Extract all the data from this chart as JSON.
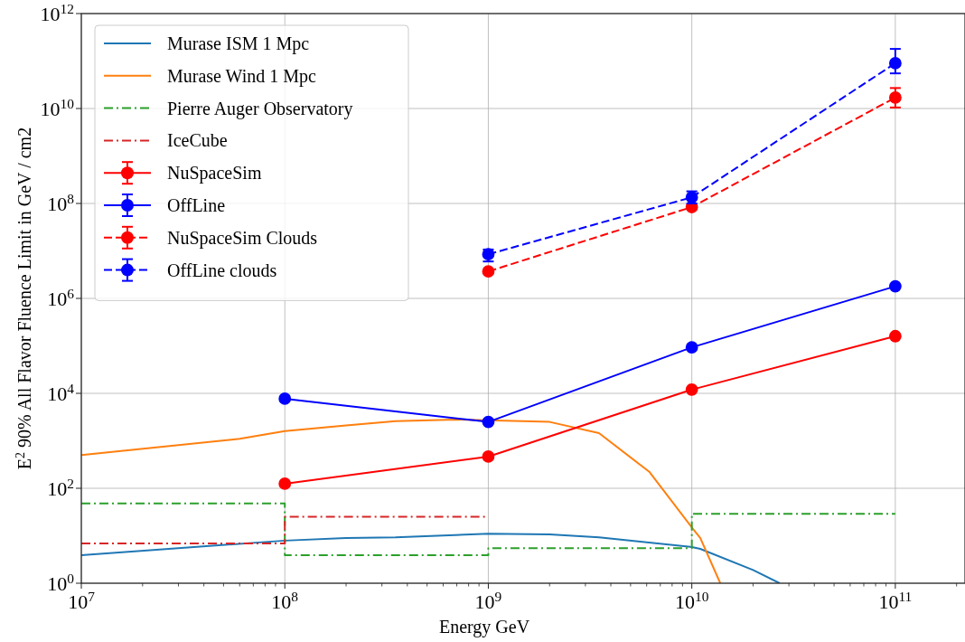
{
  "chart_data": {
    "type": "line",
    "xlabel": "Energy GeV",
    "ylabel": "E$^{2}$ 90% All Flavor Fluence Limit in GeV / cm2",
    "log": "xy",
    "grid": true,
    "legend": "top left",
    "xlim": [
      10000000.0,
      220000000000.0
    ],
    "ylim": [
      1,
      1000000000000.0
    ],
    "xticks": [
      {
        "value": 10000000.0,
        "label": "10$^{7}$"
      },
      {
        "value": 20000000.0,
        "label": null
      },
      {
        "value": 30000000.0,
        "label": null
      },
      {
        "value": 40000000.0,
        "label": null
      },
      {
        "value": 50000000.0,
        "label": null
      },
      {
        "value": 60000000.0,
        "label": null
      },
      {
        "value": 70000000.0,
        "label": null
      },
      {
        "value": 80000000.0,
        "label": null
      },
      {
        "value": 90000000.0,
        "label": null
      },
      {
        "value": 100000000.0,
        "label": "10$^{8}$"
      },
      {
        "value": 200000000.0,
        "label": null
      },
      {
        "value": 300000000.0,
        "label": null
      },
      {
        "value": 400000000.0,
        "label": null
      },
      {
        "value": 500000000.0,
        "label": null
      },
      {
        "value": 600000000.0,
        "label": null
      },
      {
        "value": 700000000.0,
        "label": null
      },
      {
        "value": 800000000.0,
        "label": null
      },
      {
        "value": 900000000.0,
        "label": null
      },
      {
        "value": 1000000000.0,
        "label": "10$^{9}$"
      },
      {
        "value": 2000000000.0,
        "label": null
      },
      {
        "value": 3000000000.0,
        "label": null
      },
      {
        "value": 4000000000.0,
        "label": null
      },
      {
        "value": 5000000000.0,
        "label": null
      },
      {
        "value": 6000000000.0,
        "label": null
      },
      {
        "value": 7000000000.0,
        "label": null
      },
      {
        "value": 8000000000.0,
        "label": null
      },
      {
        "value": 9000000000.0,
        "label": null
      },
      {
        "value": 10000000000.0,
        "label": "10$^{10}$"
      },
      {
        "value": 20000000000.0,
        "label": null
      },
      {
        "value": 30000000000.0,
        "label": null
      },
      {
        "value": 40000000000.0,
        "label": null
      },
      {
        "value": 50000000000.0,
        "label": null
      },
      {
        "value": 60000000000.0,
        "label": null
      },
      {
        "value": 70000000000.0,
        "label": null
      },
      {
        "value": 80000000000.0,
        "label": null
      },
      {
        "value": 90000000000.0,
        "label": null
      },
      {
        "value": 100000000000.0,
        "label": "10$^{11}$"
      },
      {
        "value": 200000000000.0,
        "label": null
      }
    ],
    "yticks": [
      {
        "value": 1,
        "label": "10$^{0}$"
      },
      {
        "value": 100,
        "label": "10$^{2}$"
      },
      {
        "value": 10000.0,
        "label": "10$^{4}$"
      },
      {
        "value": 1000000.0,
        "label": "10$^{6}$"
      },
      {
        "value": 100000000.0,
        "label": "10$^{8}$"
      },
      {
        "value": 10000000000.0,
        "label": "10$^{10}$"
      },
      {
        "value": 1000000000000.0,
        "label": "10$^{12}$"
      }
    ],
    "series": [
      {
        "name": "Murase ISM 1 Mpc",
        "color": "#1f77b4",
        "line_style": "solid",
        "x": [
          10000000.0,
          100000000.0,
          200000000.0,
          350000000.0,
          1000000000.0,
          2000000000.0,
          3500000000.0,
          10000000000.0,
          11000000000.0,
          20000000000.0,
          27000000000.0
        ],
        "values": [
          3.9,
          7.9,
          9,
          9.3,
          11,
          10.7,
          9.3,
          5.8,
          5.3,
          1.9,
          1
        ]
      },
      {
        "name": "Murase Wind 1 Mpc",
        "color": "#ff7f0e",
        "line_style": "solid",
        "x": [
          10000000.0,
          60000000.0,
          100000000.0,
          200000000.0,
          350000000.0,
          700000000.0,
          2000000000.0,
          3500000000.0,
          6200000000.0,
          10000000000.0,
          11000000000.0,
          13800000000.0
        ],
        "values": [
          500,
          1100,
          1600,
          2100,
          2600,
          2800,
          2500,
          1450,
          220,
          15,
          9,
          1
        ]
      },
      {
        "name": "Pierre Auger Observatory",
        "type": "step",
        "color": "#2ca02c",
        "line_style": "dashdot",
        "x": [
          10000000.0,
          100000000.0,
          1000000000.0,
          10000000000.0,
          100000000000.0
        ],
        "values": [
          48,
          3.9,
          5.5,
          29,
          29
        ]
      },
      {
        "name": "IceCube",
        "type": "step",
        "color": "#d62728",
        "line_style": "dashdot",
        "x": [
          10000000.0,
          100000000.0,
          1000000000.0
        ],
        "values": [
          6.9,
          25,
          25
        ]
      },
      {
        "name": "NuSpaceSim",
        "color": "#ff0000",
        "line_style": "solid",
        "marker": "circle",
        "x": [
          100000000.0,
          1000000000.0,
          10000000000.0,
          100000000000.0
        ],
        "values": [
          125,
          465,
          12000,
          160000
        ],
        "errors": [
          null,
          null,
          null,
          null
        ]
      },
      {
        "name": "OffLine",
        "color": "#0000ff",
        "line_style": "solid",
        "marker": "circle",
        "x": [
          100000000.0,
          1000000000.0,
          10000000000.0,
          100000000000.0
        ],
        "values": [
          7700,
          2500,
          93000,
          1800000
        ],
        "errors": [
          null,
          null,
          null,
          null
        ]
      },
      {
        "name": "NuSpaceSim Clouds",
        "color": "#ff0000",
        "line_style": "dashed",
        "marker": "circle",
        "x": [
          1000000000.0,
          10000000000.0,
          100000000000.0
        ],
        "values": [
          3700000,
          84000000,
          17000000000
        ],
        "errors": [
          null,
          null,
          [
            10500000000,
            27000000000
          ]
        ]
      },
      {
        "name": "OffLine clouds",
        "color": "#0000ff",
        "line_style": "dashed",
        "marker": "circle",
        "x": [
          1000000000.0,
          10000000000.0,
          100000000000.0
        ],
        "values": [
          8500000,
          135000000,
          90000000000
        ],
        "errors": [
          [
            6000000,
            10700000
          ],
          [
            100000000,
            180000000
          ],
          [
            55000000000,
            180000000000
          ]
        ]
      }
    ]
  }
}
